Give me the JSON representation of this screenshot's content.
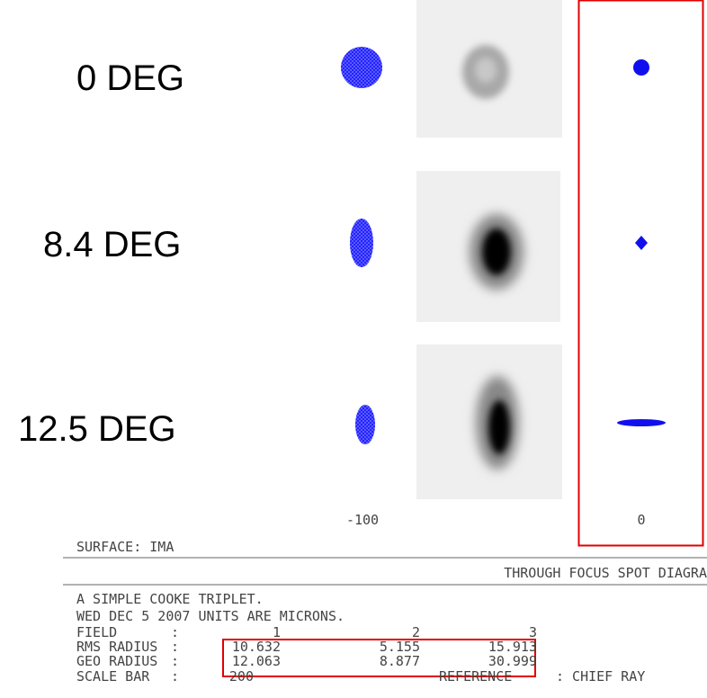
{
  "fields": [
    "0 DEG",
    "8.4 DEG",
    "12.5 DEG"
  ],
  "focus_labels": [
    "-100",
    "0"
  ],
  "surface": "SURFACE: IMA",
  "plot_title": "THROUGH FOCUS SPOT DIAGRA",
  "header_lines": [
    "A SIMPLE COOKE TRIPLET.",
    "WED DEC 5 2007   UNITS ARE MICRONS."
  ],
  "table": {
    "rows": [
      [
        "FIELD",
        ":",
        "1",
        "2",
        "3"
      ],
      [
        "RMS RADIUS",
        ":",
        "10.632",
        "5.155",
        "15.913"
      ],
      [
        "GEO RADIUS",
        ":",
        "12.063",
        "8.877",
        "30.999"
      ],
      [
        "SCALE BAR",
        ":",
        "200",
        "REFERENCE",
        ": CHIEF RAY"
      ]
    ]
  }
}
